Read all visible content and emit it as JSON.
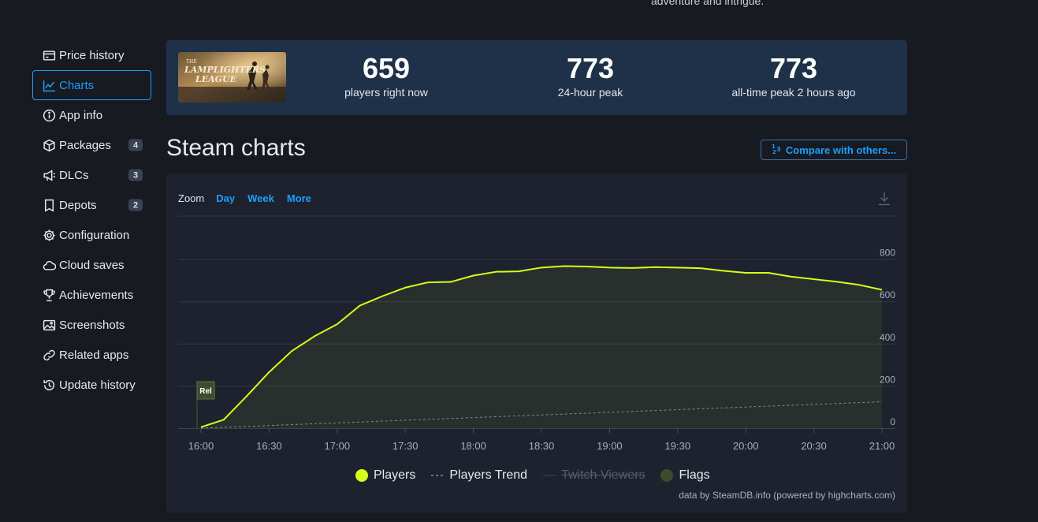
{
  "top_text": "adventure and intrigue.",
  "sidebar": {
    "items": [
      {
        "label": "Price history",
        "icon": "price-history-icon"
      },
      {
        "label": "Charts",
        "icon": "charts-icon",
        "active": true
      },
      {
        "label": "App info",
        "icon": "info-icon"
      },
      {
        "label": "Packages",
        "icon": "package-icon",
        "badge": "4"
      },
      {
        "label": "DLCs",
        "icon": "dlc-icon",
        "badge": "3"
      },
      {
        "label": "Depots",
        "icon": "depot-icon",
        "badge": "2"
      },
      {
        "label": "Configuration",
        "icon": "gear-icon"
      },
      {
        "label": "Cloud saves",
        "icon": "cloud-icon"
      },
      {
        "label": "Achievements",
        "icon": "trophy-icon"
      },
      {
        "label": "Screenshots",
        "icon": "image-icon"
      },
      {
        "label": "Related apps",
        "icon": "link-icon"
      },
      {
        "label": "Update history",
        "icon": "history-icon"
      }
    ]
  },
  "banner": {
    "game_logo_text": "THE LAMPLIGHTERS LEAGUE",
    "stats": [
      {
        "value": "659",
        "label": "players right now"
      },
      {
        "value": "773",
        "label": "24-hour peak"
      },
      {
        "value": "773",
        "label": "all-time peak 2 hours ago"
      }
    ]
  },
  "page_title": "Steam charts",
  "compare_button": "Compare with others...",
  "zoom": {
    "label": "Zoom",
    "buttons": [
      "Day",
      "Week",
      "More"
    ]
  },
  "legend": [
    {
      "label": "Players",
      "color": "#d6ff1a",
      "symbol": "circle"
    },
    {
      "label": "Players Trend",
      "color": "#9aa3b1",
      "symbol": "dash"
    },
    {
      "label": "Twitch Viewers",
      "color": "#545c6a",
      "symbol": "line",
      "disabled": true
    },
    {
      "label": "Flags",
      "color": "#3d4b2e",
      "symbol": "circle"
    }
  ],
  "credit": "data by SteamDB.info (powered by highcharts.com)",
  "chart_data": {
    "type": "line",
    "x_tick_labels": [
      "16:00",
      "16:30",
      "17:00",
      "17:30",
      "18:00",
      "18:30",
      "19:00",
      "19:30",
      "20:00",
      "20:30",
      "21:00"
    ],
    "y_ticks": [
      0,
      200,
      400,
      600,
      800
    ],
    "ylim": [
      0,
      1000
    ],
    "grid": true,
    "legend_position": "bottom",
    "flag": {
      "label": "Rel",
      "x": "16:00"
    },
    "series": [
      {
        "name": "Players",
        "color": "#d6ff1a",
        "x": [
          "16:00",
          "16:10",
          "16:20",
          "16:30",
          "16:40",
          "16:50",
          "17:00",
          "17:10",
          "17:20",
          "17:30",
          "17:40",
          "17:50",
          "18:00",
          "18:10",
          "18:20",
          "18:30",
          "18:40",
          "18:50",
          "19:00",
          "19:10",
          "19:20",
          "19:30",
          "19:40",
          "19:50",
          "20:00",
          "20:10",
          "20:20",
          "20:30",
          "20:40",
          "20:50",
          "21:00"
        ],
        "values": [
          5,
          40,
          150,
          265,
          365,
          435,
          492,
          580,
          625,
          665,
          690,
          692,
          722,
          740,
          742,
          760,
          767,
          765,
          760,
          758,
          762,
          760,
          757,
          745,
          735,
          735,
          717,
          705,
          693,
          678,
          655
        ]
      },
      {
        "name": "Players Trend",
        "color": "#9aa3b1",
        "x": [
          "16:00",
          "21:00"
        ],
        "values": [
          0,
          125
        ]
      }
    ]
  }
}
